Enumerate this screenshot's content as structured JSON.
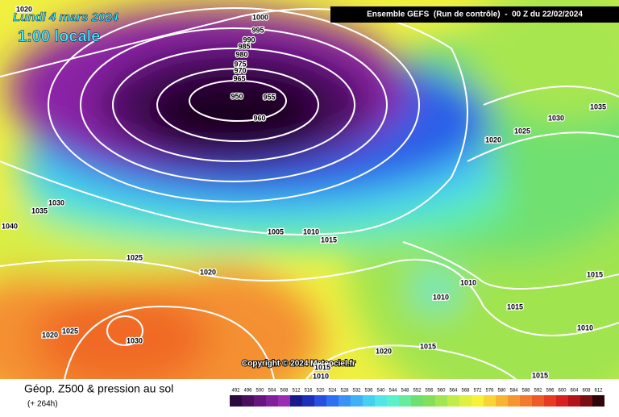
{
  "header": {
    "date": "Lundi 4 mars 2024",
    "time": "1:00 locale",
    "run": "Ensemble GEFS  (Run de contrôle)  -  00 Z du 22/02/2024"
  },
  "copyright": "Copyright © 2024 Meteociel.fr",
  "footer": {
    "title": "Géop. Z500 & pression au sol",
    "lead": "(+ 264h)"
  },
  "isobars": [
    1020,
    1000,
    995,
    990,
    985,
    980,
    975,
    970,
    965,
    950,
    955,
    960,
    1035,
    1030,
    1025,
    1020,
    1030,
    1035,
    1040,
    1005,
    1010,
    1015,
    1025,
    1020,
    1010,
    1015,
    1010,
    1015,
    1010,
    1030,
    1020,
    1025,
    1020,
    1015,
    1015,
    1010,
    1015
  ],
  "scale": {
    "labels": [
      492,
      496,
      500,
      504,
      508,
      512,
      516,
      520,
      524,
      528,
      532,
      536,
      540,
      544,
      548,
      552,
      556,
      560,
      564,
      568,
      572,
      576,
      580,
      584,
      588,
      592,
      596,
      600,
      604,
      608,
      612
    ],
    "colors": [
      "#2b0a3d",
      "#4a0f5e",
      "#66167c",
      "#80209a",
      "#9a2cb2",
      "#1a1a8c",
      "#1f2fb8",
      "#2a4ee0",
      "#2f6ff2",
      "#3a92f6",
      "#3fb2f6",
      "#45d0f2",
      "#52e6e6",
      "#5ef0c8",
      "#66ec9c",
      "#6ee070",
      "#84e05a",
      "#a2e650",
      "#c2ec48",
      "#e0f040",
      "#f6f23a",
      "#fad436",
      "#f8b432",
      "#f6962e",
      "#f27a2a",
      "#ee5a26",
      "#e83a22",
      "#d8201e",
      "#b0141a",
      "#7a0c12",
      "#300508"
    ]
  }
}
